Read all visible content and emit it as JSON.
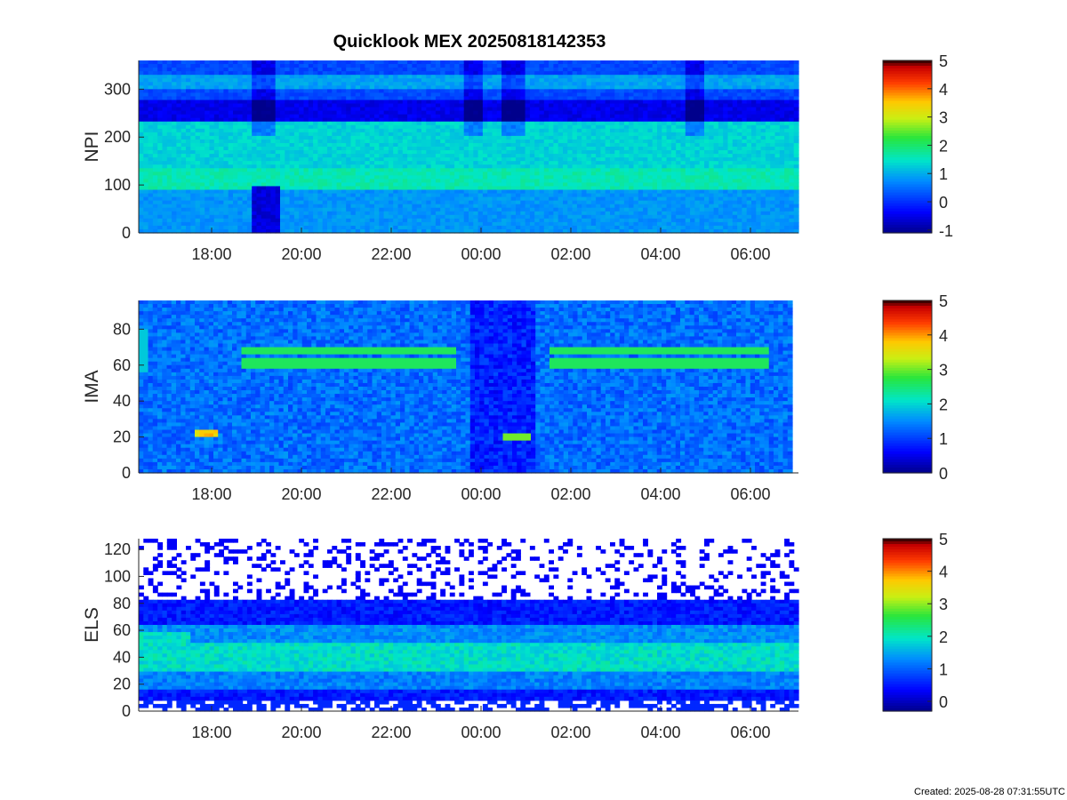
{
  "title": "Quicklook MEX 20250818142353",
  "footer": "Created: 2025-08-28 07:31:55UTC",
  "chart_data": [
    {
      "type": "heatmap",
      "ylabel": "NPI",
      "x_ticks": [
        "18:00",
        "20:00",
        "22:00",
        "00:00",
        "02:00",
        "04:00",
        "06:00"
      ],
      "y_ticks": [
        0,
        100,
        200,
        300
      ],
      "ylim": [
        0,
        360
      ],
      "colorbar": {
        "range": [
          -1.1,
          5
        ],
        "ticks": [
          -1,
          0,
          1,
          2,
          3,
          4,
          5
        ]
      },
      "grid": false
    },
    {
      "type": "heatmap",
      "ylabel": "IMA",
      "x_ticks": [
        "18:00",
        "20:00",
        "22:00",
        "00:00",
        "02:00",
        "04:00",
        "06:00"
      ],
      "y_ticks": [
        0,
        20,
        40,
        60,
        80
      ],
      "ylim": [
        0,
        96
      ],
      "colorbar": {
        "range": [
          0,
          5
        ],
        "ticks": [
          0,
          1,
          2,
          3,
          4,
          5
        ]
      },
      "grid": false
    },
    {
      "type": "heatmap",
      "ylabel": "ELS",
      "x_ticks": [
        "18:00",
        "20:00",
        "22:00",
        "00:00",
        "02:00",
        "04:00",
        "06:00"
      ],
      "y_ticks": [
        0,
        20,
        40,
        60,
        80,
        100,
        120
      ],
      "ylim": [
        0,
        128
      ],
      "colorbar": {
        "range": [
          -0.3,
          5
        ],
        "ticks": [
          0,
          1,
          2,
          3,
          4,
          5
        ]
      },
      "grid": false
    }
  ]
}
